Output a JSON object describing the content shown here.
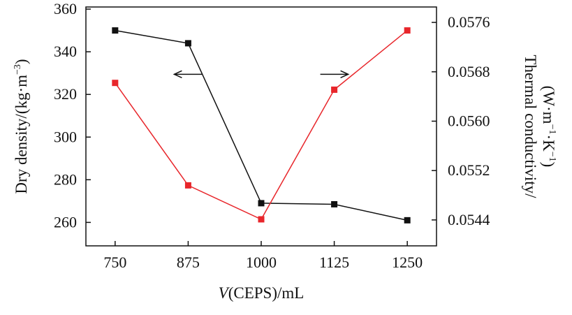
{
  "chart_data": {
    "type": "line",
    "x_label_parts": [
      {
        "text": "V",
        "italic": true
      },
      {
        "text": "(CEPS)/mL",
        "italic": false
      }
    ],
    "y_left_label_parts": [
      {
        "text": "Dry density/(kg·m",
        "sup": false
      },
      {
        "text": "−3",
        "sup": true
      },
      {
        "text": ")",
        "sup": false
      }
    ],
    "y_right_label_line1": "Thermal conductivity/",
    "y_right_label_line2_parts": [
      {
        "text": "(W·m",
        "sup": false
      },
      {
        "text": "−1",
        "sup": true
      },
      {
        "text": "·K",
        "sup": false
      },
      {
        "text": "−1",
        "sup": true
      },
      {
        "text": ")",
        "sup": false
      }
    ],
    "x": [
      750,
      875,
      1000,
      1125,
      1250
    ],
    "x_ticks": [
      "750",
      "875",
      "1000",
      "1125",
      "1250"
    ],
    "xlim": [
      700,
      1300
    ],
    "y_left_ticks": [
      "260",
      "280",
      "300",
      "320",
      "340",
      "360"
    ],
    "y_left_lim": [
      249,
      361
    ],
    "y_right_ticks": [
      "0.0544",
      "0.0552",
      "0.0560",
      "0.0568",
      "0.0576"
    ],
    "y_right_lim": [
      0.05398,
      0.05785
    ],
    "grid": false,
    "series": [
      {
        "axis": "left",
        "color": "#111111",
        "values": [
          350,
          344,
          269,
          268.5,
          261
        ]
      },
      {
        "axis": "right",
        "color": "#e8262b",
        "values": [
          0.05662,
          0.05496,
          0.05441,
          0.05651,
          0.05747
        ]
      }
    ],
    "arrows": [
      {
        "direction": "left",
        "x": 875,
        "y": 0.05676,
        "axis": "right",
        "series_color": "#111111"
      },
      {
        "direction": "right",
        "x": 1125,
        "y": 0.05676,
        "axis": "right",
        "series_color": "#111111"
      }
    ]
  }
}
